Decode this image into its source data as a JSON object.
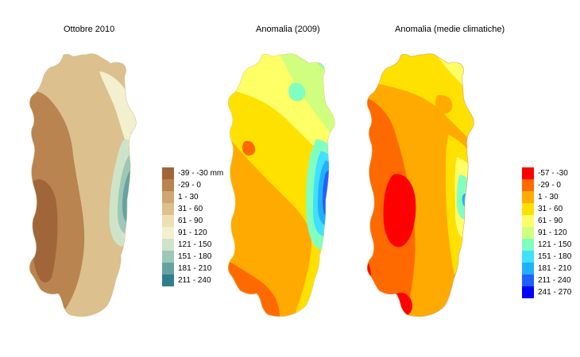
{
  "panels": [
    {
      "id": "p1",
      "title": "Ottobre 2010"
    },
    {
      "id": "p2",
      "title": "Anomalia (2009)"
    },
    {
      "id": "p3",
      "title": "Anomalia (medie climatiche)"
    }
  ],
  "legend_rain": {
    "items": [
      {
        "label": "-39 - -30 mm",
        "color": "#a0663a"
      },
      {
        "label": "-29 - 0",
        "color": "#b98450"
      },
      {
        "label": "1 - 30",
        "color": "#cfa671"
      },
      {
        "label": "31 - 60",
        "color": "#dcc08d"
      },
      {
        "label": "61 - 90",
        "color": "#ece0b2"
      },
      {
        "label": "91 - 120",
        "color": "#f2f0cf"
      },
      {
        "label": "121 - 150",
        "color": "#cfe3c8"
      },
      {
        "label": "151 - 180",
        "color": "#9ec7b6"
      },
      {
        "label": "181 - 210",
        "color": "#64a3a2"
      },
      {
        "label": "211 - 240",
        "color": "#2f7f8a"
      }
    ]
  },
  "legend_anomaly": {
    "items": [
      {
        "label": "-57 - -30",
        "color": "#ff0000"
      },
      {
        "label": "-29 - 0",
        "color": "#ff6a00"
      },
      {
        "label": "1 - 30",
        "color": "#ffaa00"
      },
      {
        "label": "31 - 60",
        "color": "#ffe100"
      },
      {
        "label": "61 - 90",
        "color": "#ffff66"
      },
      {
        "label": "91 - 120",
        "color": "#d0ff80"
      },
      {
        "label": "121 - 150",
        "color": "#80ffc0"
      },
      {
        "label": "151 - 180",
        "color": "#40e0ff"
      },
      {
        "label": "181 - 210",
        "color": "#20b0ff"
      },
      {
        "label": "211 - 240",
        "color": "#2060ff"
      },
      {
        "label": "241 - 270",
        "color": "#0000ff"
      }
    ]
  }
}
